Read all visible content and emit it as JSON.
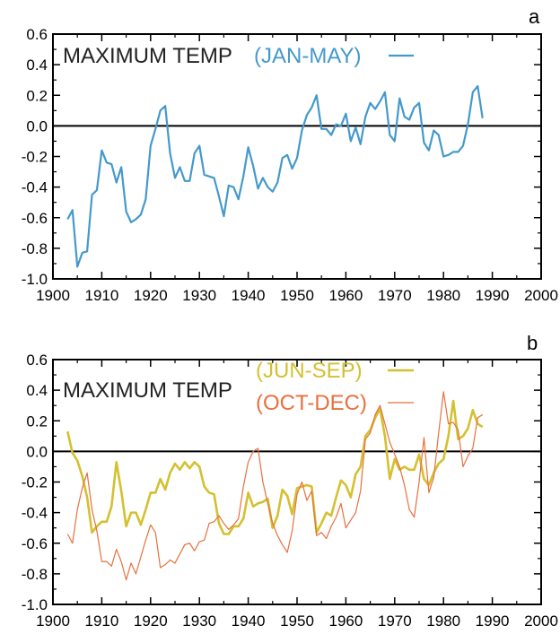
{
  "chart_data": [
    {
      "type": "line",
      "panel_label": "a",
      "title": "MAXIMUM  TEMP",
      "xlim": [
        1900,
        2000
      ],
      "ylim": [
        -1.0,
        0.6
      ],
      "xticks": [
        "1900",
        "1910",
        "1920",
        "1930",
        "1940",
        "1950",
        "1960",
        "1970",
        "1980",
        "1990",
        "2000"
      ],
      "yticks": [
        "0.6",
        "0.4",
        "0.2",
        "0.0",
        "-0.2",
        "-0.4",
        "-0.6",
        "-0.8",
        "-1.0"
      ],
      "zero_line": true,
      "grid": false,
      "legend_position": "top-center",
      "x": [
        1903,
        1904,
        1905,
        1906,
        1907,
        1908,
        1909,
        1910,
        1911,
        1912,
        1913,
        1914,
        1915,
        1916,
        1917,
        1918,
        1919,
        1920,
        1921,
        1922,
        1923,
        1924,
        1925,
        1926,
        1927,
        1928,
        1929,
        1930,
        1931,
        1932,
        1933,
        1934,
        1935,
        1936,
        1937,
        1938,
        1939,
        1940,
        1941,
        1942,
        1943,
        1944,
        1945,
        1946,
        1947,
        1948,
        1949,
        1950,
        1951,
        1952,
        1953,
        1954,
        1955,
        1956,
        1957,
        1958,
        1959,
        1960,
        1961,
        1962,
        1963,
        1964,
        1965,
        1966,
        1967,
        1968,
        1969,
        1970,
        1971,
        1972,
        1973,
        1974,
        1975,
        1976,
        1977,
        1978,
        1979,
        1980,
        1981,
        1982,
        1983,
        1984,
        1985,
        1986,
        1987,
        1988
      ],
      "series": [
        {
          "name": "(JAN-MAY)",
          "color": "#4499cc",
          "values": [
            -0.61,
            -0.55,
            -0.92,
            -0.83,
            -0.82,
            -0.45,
            -0.42,
            -0.16,
            -0.24,
            -0.25,
            -0.37,
            -0.27,
            -0.56,
            -0.63,
            -0.61,
            -0.58,
            -0.48,
            -0.13,
            -0.02,
            0.1,
            0.13,
            -0.18,
            -0.34,
            -0.27,
            -0.36,
            -0.36,
            -0.18,
            -0.13,
            -0.32,
            -0.33,
            -0.34,
            -0.46,
            -0.59,
            -0.39,
            -0.4,
            -0.48,
            -0.33,
            -0.14,
            -0.26,
            -0.41,
            -0.34,
            -0.4,
            -0.43,
            -0.37,
            -0.21,
            -0.19,
            -0.28,
            -0.21,
            -0.03,
            0.07,
            0.12,
            0.2,
            -0.02,
            -0.02,
            -0.06,
            0.01,
            0.0,
            0.08,
            -0.1,
            -0.01,
            -0.12,
            0.06,
            0.15,
            0.11,
            0.16,
            0.22,
            -0.06,
            -0.1,
            0.18,
            0.06,
            0.04,
            0.12,
            0.15,
            -0.11,
            -0.16,
            -0.03,
            -0.06,
            -0.2,
            -0.19,
            -0.17,
            -0.17,
            -0.13,
            0.01,
            0.22,
            0.26,
            0.05
          ]
        }
      ]
    },
    {
      "type": "line",
      "panel_label": "b",
      "title": "MAXIMUM  TEMP",
      "xlim": [
        1900,
        2000
      ],
      "ylim": [
        -1.0,
        0.6
      ],
      "xticks": [
        "1900",
        "1910",
        "1920",
        "1930",
        "1940",
        "1950",
        "1960",
        "1970",
        "1980",
        "1990",
        "2000"
      ],
      "yticks": [
        "0.6",
        "0.4",
        "0.2",
        "0.0",
        "-0.2",
        "-0.4",
        "-0.6",
        "-0.8",
        "-1.0"
      ],
      "zero_line": true,
      "grid": false,
      "legend_position": "top-center",
      "x": [
        1903,
        1904,
        1905,
        1906,
        1907,
        1908,
        1909,
        1910,
        1911,
        1912,
        1913,
        1914,
        1915,
        1916,
        1917,
        1918,
        1919,
        1920,
        1921,
        1922,
        1923,
        1924,
        1925,
        1926,
        1927,
        1928,
        1929,
        1930,
        1931,
        1932,
        1933,
        1934,
        1935,
        1936,
        1937,
        1938,
        1939,
        1940,
        1941,
        1942,
        1943,
        1944,
        1945,
        1946,
        1947,
        1948,
        1949,
        1950,
        1951,
        1952,
        1953,
        1954,
        1955,
        1956,
        1957,
        1958,
        1959,
        1960,
        1961,
        1962,
        1963,
        1964,
        1965,
        1966,
        1967,
        1968,
        1969,
        1970,
        1971,
        1972,
        1973,
        1974,
        1975,
        1976,
        1977,
        1978,
        1979,
        1980,
        1981,
        1982,
        1983,
        1984,
        1985,
        1986,
        1987,
        1988
      ],
      "series": [
        {
          "name": "(JUN-SEP)",
          "color": "#d4c030",
          "values": [
            0.13,
            -0.01,
            -0.06,
            -0.16,
            -0.3,
            -0.53,
            -0.49,
            -0.46,
            -0.46,
            -0.36,
            -0.07,
            -0.26,
            -0.49,
            -0.4,
            -0.4,
            -0.48,
            -0.38,
            -0.27,
            -0.27,
            -0.18,
            -0.25,
            -0.14,
            -0.08,
            -0.12,
            -0.07,
            -0.11,
            -0.07,
            -0.1,
            -0.23,
            -0.27,
            -0.28,
            -0.47,
            -0.54,
            -0.54,
            -0.49,
            -0.49,
            -0.44,
            -0.27,
            -0.36,
            -0.34,
            -0.33,
            -0.31,
            -0.5,
            -0.42,
            -0.25,
            -0.29,
            -0.41,
            -0.24,
            -0.23,
            -0.22,
            -0.23,
            -0.53,
            -0.47,
            -0.4,
            -0.42,
            -0.3,
            -0.19,
            -0.22,
            -0.3,
            -0.15,
            -0.1,
            0.1,
            0.14,
            0.22,
            0.28,
            0.1,
            -0.18,
            -0.05,
            -0.12,
            -0.1,
            -0.12,
            -0.12,
            -0.02,
            -0.18,
            -0.22,
            -0.14,
            -0.08,
            -0.05,
            0.1,
            0.33,
            0.08,
            0.1,
            0.15,
            0.27,
            0.18,
            0.16
          ]
        },
        {
          "name": "(OCT-DEC)",
          "color": "#e8703e",
          "values": [
            -0.54,
            -0.6,
            -0.38,
            -0.24,
            -0.14,
            -0.38,
            -0.52,
            -0.72,
            -0.72,
            -0.75,
            -0.64,
            -0.72,
            -0.84,
            -0.73,
            -0.8,
            -0.69,
            -0.58,
            -0.48,
            -0.53,
            -0.76,
            -0.74,
            -0.71,
            -0.73,
            -0.67,
            -0.61,
            -0.6,
            -0.65,
            -0.59,
            -0.58,
            -0.47,
            -0.46,
            -0.42,
            -0.47,
            -0.51,
            -0.48,
            -0.44,
            -0.23,
            -0.07,
            0.0,
            0.02,
            -0.2,
            -0.34,
            -0.47,
            -0.55,
            -0.61,
            -0.66,
            -0.52,
            -0.28,
            -0.2,
            -0.32,
            -0.26,
            -0.55,
            -0.53,
            -0.57,
            -0.49,
            -0.43,
            -0.34,
            -0.5,
            -0.45,
            -0.4,
            -0.26,
            0.08,
            0.12,
            0.24,
            0.3,
            0.18,
            0.06,
            -0.02,
            -0.1,
            -0.22,
            -0.38,
            -0.43,
            -0.2,
            0.09,
            -0.27,
            -0.17,
            0.12,
            0.39,
            0.18,
            0.19,
            0.14,
            -0.1,
            -0.03,
            0.02,
            0.22,
            0.24
          ]
        }
      ]
    }
  ]
}
